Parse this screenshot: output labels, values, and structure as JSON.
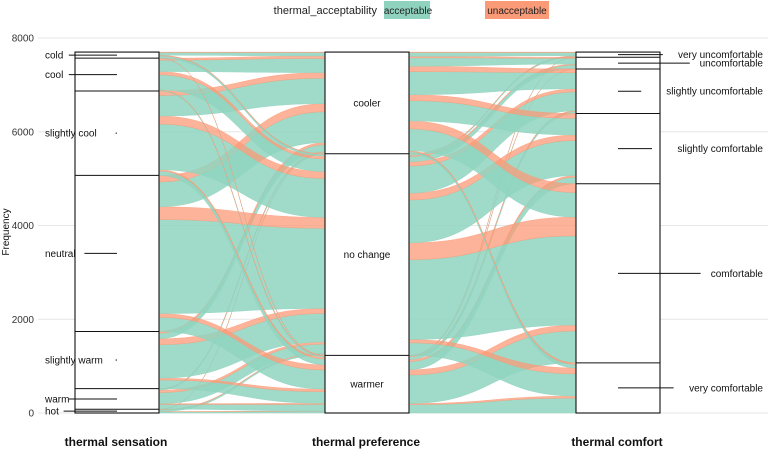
{
  "chart_data": {
    "type": "alluvial",
    "legend": {
      "title": "thermal_acceptability",
      "position": "top",
      "items": [
        {
          "label": "acceptable",
          "color": "#8fd3bf"
        },
        {
          "label": "unacceptable",
          "color": "#fb9a77"
        }
      ]
    },
    "ylabel": "Frequency",
    "ylim": [
      0,
      8000
    ],
    "yticks": [
      "0",
      "2000",
      "4000",
      "6000",
      "8000"
    ],
    "axes": [
      {
        "name": "thermal sensation",
        "strata": [
          {
            "label": "hot",
            "value": 80
          },
          {
            "label": "warm",
            "value": 440
          },
          {
            "label": "slightly warm",
            "value": 1220
          },
          {
            "label": "neutral",
            "value": 3330
          },
          {
            "label": "slightly cool",
            "value": 1800
          },
          {
            "label": "cool",
            "value": 700
          },
          {
            "label": "cold",
            "value": 130
          }
        ]
      },
      {
        "name": "thermal preference",
        "strata": [
          {
            "label": "warmer",
            "value": 1230
          },
          {
            "label": "no change",
            "value": 4300
          },
          {
            "label": "cooler",
            "value": 2170
          }
        ]
      },
      {
        "name": "thermal comfort",
        "strata": [
          {
            "label": "very comfortable",
            "value": 1070
          },
          {
            "label": "comfortable",
            "value": 3820
          },
          {
            "label": "slightly comfortable",
            "value": 1500
          },
          {
            "label": "slightly uncomfortable",
            "value": 950
          },
          {
            "label": "uncomfortable",
            "value": 250
          },
          {
            "label": "very uncomfortable",
            "value": 110
          }
        ]
      }
    ]
  }
}
